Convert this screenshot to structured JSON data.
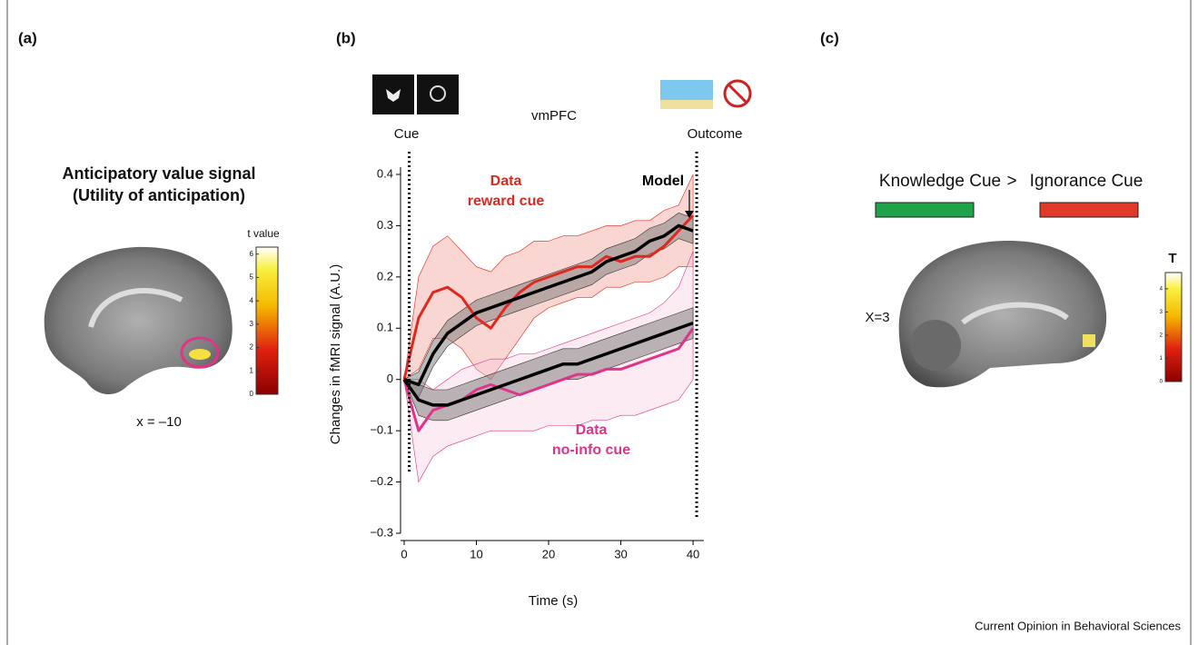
{
  "panel_a": {
    "label": "(a)",
    "title": [
      "Anticipatory value signal",
      "(Utility of anticipation)"
    ],
    "colorbar_title": "t value",
    "clim": [
      0,
      6.3
    ],
    "colorbar_ticks": [
      0,
      1,
      2,
      3,
      4,
      5,
      6
    ],
    "slice": "x = –10"
  },
  "chart_data": {
    "type": "line",
    "label": "(b)",
    "title": "vmPFC",
    "xlabel": "Time (s)",
    "ylabel": "Changes in fMRI signal (A.U.)",
    "events": [
      {
        "label": "Cue",
        "x": 0.7
      },
      {
        "label": "Outcome",
        "x": 40.5
      }
    ],
    "x": [
      0,
      2,
      4,
      6,
      8,
      10,
      12,
      14,
      16,
      18,
      20,
      22,
      24,
      26,
      28,
      30,
      32,
      34,
      36,
      38,
      40
    ],
    "series": [
      {
        "label": [
          "Data",
          "reward cue"
        ],
        "color": "#e0281e",
        "values": [
          0,
          0.12,
          0.17,
          0.18,
          0.16,
          0.12,
          0.1,
          0.14,
          0.17,
          0.19,
          0.2,
          0.21,
          0.22,
          0.22,
          0.24,
          0.23,
          0.24,
          0.24,
          0.26,
          0.29,
          0.32
        ],
        "lower": [
          0,
          0.02,
          0.08,
          0.08,
          0.06,
          0.02,
          0.0,
          0.04,
          0.08,
          0.12,
          0.14,
          0.15,
          0.16,
          0.16,
          0.18,
          0.18,
          0.19,
          0.19,
          0.2,
          0.22,
          0.22
        ],
        "upper": [
          0,
          0.2,
          0.26,
          0.28,
          0.25,
          0.22,
          0.21,
          0.24,
          0.25,
          0.27,
          0.27,
          0.28,
          0.28,
          0.29,
          0.3,
          0.3,
          0.31,
          0.31,
          0.33,
          0.34,
          0.4
        ]
      },
      {
        "label": [
          "Data",
          "no-info cue"
        ],
        "color": "#e0338a",
        "values": [
          0,
          -0.1,
          -0.06,
          -0.05,
          -0.04,
          -0.02,
          -0.01,
          -0.02,
          -0.03,
          -0.02,
          -0.01,
          0.0,
          0.01,
          0.01,
          0.02,
          0.02,
          0.03,
          0.04,
          0.05,
          0.06,
          0.1
        ],
        "lower": [
          0,
          -0.2,
          -0.15,
          -0.13,
          -0.12,
          -0.11,
          -0.1,
          -0.1,
          -0.1,
          -0.1,
          -0.09,
          -0.09,
          -0.09,
          -0.08,
          -0.08,
          -0.07,
          -0.07,
          -0.06,
          -0.05,
          -0.04,
          0.0
        ],
        "upper": [
          0,
          0.0,
          -0.02,
          0.0,
          0.02,
          0.03,
          0.04,
          0.04,
          0.05,
          0.05,
          0.06,
          0.07,
          0.08,
          0.09,
          0.1,
          0.11,
          0.12,
          0.13,
          0.15,
          0.18,
          0.25
        ]
      },
      {
        "label": [
          "Model"
        ],
        "color": "#000000",
        "values": [
          0,
          -0.01,
          0.05,
          0.09,
          0.11,
          0.13,
          0.14,
          0.15,
          0.16,
          0.17,
          0.18,
          0.19,
          0.2,
          0.21,
          0.23,
          0.24,
          0.25,
          0.27,
          0.28,
          0.3,
          0.29
        ],
        "lower": [
          0,
          -0.035,
          0.025,
          0.065,
          0.085,
          0.105,
          0.115,
          0.125,
          0.135,
          0.145,
          0.155,
          0.165,
          0.175,
          0.185,
          0.205,
          0.215,
          0.225,
          0.245,
          0.255,
          0.275,
          0.265
        ],
        "upper": [
          0,
          0.015,
          0.075,
          0.115,
          0.135,
          0.155,
          0.165,
          0.175,
          0.185,
          0.195,
          0.205,
          0.215,
          0.225,
          0.235,
          0.255,
          0.265,
          0.275,
          0.295,
          0.305,
          0.325,
          0.315
        ]
      },
      {
        "color": "#000000",
        "values": [
          0,
          -0.04,
          -0.05,
          -0.05,
          -0.04,
          -0.03,
          -0.02,
          -0.01,
          0.0,
          0.01,
          0.02,
          0.03,
          0.03,
          0.04,
          0.05,
          0.06,
          0.07,
          0.08,
          0.09,
          0.1,
          0.11
        ],
        "lower": [
          0,
          -0.07,
          -0.08,
          -0.08,
          -0.07,
          -0.06,
          -0.05,
          -0.04,
          -0.03,
          -0.02,
          -0.01,
          0.0,
          0.0,
          0.01,
          0.02,
          0.03,
          0.04,
          0.05,
          0.06,
          0.07,
          0.08
        ],
        "upper": [
          0,
          -0.01,
          -0.02,
          -0.02,
          -0.01,
          0.0,
          0.01,
          0.02,
          0.03,
          0.04,
          0.05,
          0.06,
          0.06,
          0.07,
          0.08,
          0.09,
          0.1,
          0.11,
          0.12,
          0.13,
          0.14
        ]
      }
    ],
    "xlim": [
      -0.5,
      41.5
    ],
    "ylim": [
      -0.3,
      0.4
    ],
    "xticks": [
      0,
      10,
      20,
      30,
      40
    ],
    "yticks": [
      {
        "value": -0.3,
        "label": "−0.3"
      },
      {
        "value": -0.2,
        "label": "−0.2"
      },
      {
        "value": -0.1,
        "label": "−0.1"
      },
      0,
      0.1,
      0.2,
      0.3,
      0.4
    ]
  },
  "panel_c": {
    "label": "(c)",
    "contrast": [
      "Knowledge Cue",
      ">",
      "Ignorance Cue"
    ],
    "colorbar_title": "T",
    "clim": [
      0,
      4.7
    ],
    "colorbar_ticks": [
      0,
      1,
      2,
      3,
      4
    ],
    "slice": "X=3"
  },
  "footer": "Current Opinion in Behavioral Sciences"
}
